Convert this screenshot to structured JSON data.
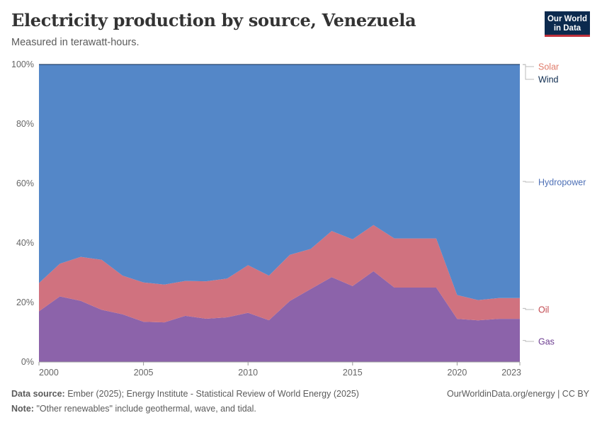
{
  "header": {
    "title": "Electricity production by source, Venezuela",
    "subtitle": "Measured in terawatt-hours.",
    "logo_line1": "Our World",
    "logo_line2": "in Data"
  },
  "footer": {
    "source_label": "Data source:",
    "source_text": "Ember (2025); Energy Institute - Statistical Review of World Energy (2025)",
    "url_text": "OurWorldinData.org/energy | CC BY",
    "note_label": "Note:",
    "note_text": "\"Other renewables\" include geothermal, wave, and tidal."
  },
  "chart_data": {
    "type": "area",
    "stacked": true,
    "normalized": true,
    "x": [
      2000,
      2001,
      2002,
      2003,
      2004,
      2005,
      2006,
      2007,
      2008,
      2009,
      2010,
      2011,
      2012,
      2013,
      2014,
      2015,
      2016,
      2017,
      2018,
      2019,
      2020,
      2021,
      2022,
      2023
    ],
    "ylim": [
      0,
      100
    ],
    "y_ticks": [
      "0%",
      "20%",
      "40%",
      "60%",
      "80%",
      "100%"
    ],
    "x_ticks": [
      2000,
      2005,
      2010,
      2015,
      2020,
      2023
    ],
    "grid": true,
    "series": [
      {
        "name": "Gas",
        "color": "#8c63aa",
        "label_color": "#6d3e91",
        "values": [
          17,
          22,
          20.5,
          17.5,
          16,
          13.5,
          13.3,
          15.5,
          14.5,
          15,
          16.5,
          14,
          20.5,
          24.5,
          28.5,
          25.5,
          30.5,
          25,
          25,
          25,
          14.5,
          14,
          14.5,
          14.5
        ]
      },
      {
        "name": "Oil",
        "color": "#d0727f",
        "label_color": "#c2484f",
        "values": [
          9.5,
          11,
          14.8,
          16.8,
          13,
          13.2,
          12.7,
          11.7,
          12.6,
          13,
          16,
          15,
          15.5,
          13.5,
          15.5,
          15.7,
          15.5,
          16.5,
          16.5,
          16.5,
          8,
          6.8,
          7,
          7
        ]
      },
      {
        "name": "Hydropower",
        "color": "#5487c8",
        "label_color": "#4c6fb6",
        "values": [
          73.4,
          66.9,
          64.6,
          65.6,
          70.9,
          73.2,
          73.9,
          72.7,
          72.8,
          71.9,
          67.4,
          70.9,
          63.9,
          61.9,
          55.9,
          58.7,
          53.9,
          58.4,
          58.4,
          58.4,
          77.4,
          79.1,
          78.4,
          78.4
        ]
      },
      {
        "name": "Wind",
        "color": "#0c2a4e",
        "label_color": "#0c2a4e",
        "values": [
          0,
          0,
          0,
          0,
          0,
          0,
          0,
          0,
          0,
          0,
          0,
          0.05,
          0.05,
          0.05,
          0.05,
          0.05,
          0.05,
          0.05,
          0.05,
          0.05,
          0.05,
          0.05,
          0.05,
          0.05
        ]
      },
      {
        "name": "Solar",
        "color": "#d0727f",
        "label_color": "#e07b6a",
        "values": [
          0,
          0,
          0,
          0,
          0,
          0,
          0,
          0,
          0,
          0,
          0,
          0,
          0,
          0,
          0,
          0,
          0,
          0,
          0,
          0,
          0.05,
          0.05,
          0.05,
          0.05
        ]
      }
    ]
  }
}
